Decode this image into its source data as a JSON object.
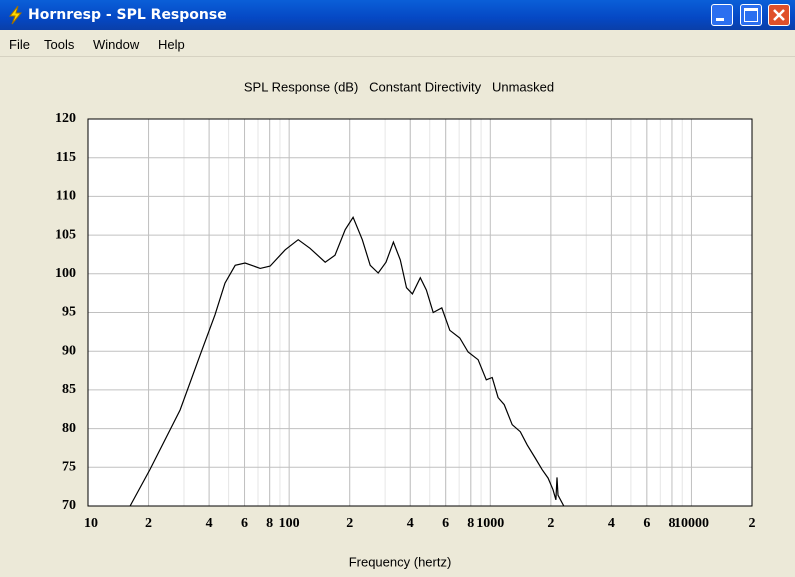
{
  "window": {
    "title": "Hornresp - SPL Response"
  },
  "menu": [
    "File",
    "Tools",
    "Window",
    "Help"
  ],
  "chart_data": {
    "type": "line",
    "title": "SPL Response (dB)   Constant Directivity   Unmasked",
    "x_label": "Frequency (hertz)",
    "x_scale": "log",
    "xlim": [
      10,
      20000
    ],
    "ylim": [
      70,
      120
    ],
    "xticks": [
      10,
      {
        "value": 20,
        "label": "2"
      },
      {
        "value": 40,
        "label": "4"
      },
      {
        "value": 60,
        "label": "6"
      },
      {
        "value": 80,
        "label": "8"
      },
      100,
      {
        "value": 200,
        "label": "2"
      },
      {
        "value": 400,
        "label": "4"
      },
      {
        "value": 600,
        "label": "6"
      },
      {
        "value": 800,
        "label": "8"
      },
      1000,
      {
        "value": 2000,
        "label": "2"
      },
      {
        "value": 4000,
        "label": "4"
      },
      {
        "value": 6000,
        "label": "6"
      },
      {
        "value": 8000,
        "label": "8"
      },
      10000,
      {
        "value": 20000,
        "label": "2"
      }
    ],
    "yticks": [
      70,
      75,
      80,
      85,
      90,
      95,
      100,
      105,
      110,
      115,
      120
    ],
    "grid": true,
    "color": "#000000",
    "x": [
      16.2,
      20.3,
      28.7,
      36.1,
      42.8,
      48.0,
      53.9,
      60.4,
      71.8,
      80.4,
      95.6,
      110.9,
      127,
      151,
      169,
      190,
      208,
      231,
      253,
      277,
      303,
      330,
      357,
      383,
      410,
      449,
      481,
      520,
      574,
      629,
      705,
      776,
      870,
      955,
      1022,
      1094,
      1172,
      1285,
      1410,
      1525,
      1671,
      1810,
      1937,
      2050,
      2118,
      2145,
      2170,
      2320
    ],
    "values": [
      70,
      74.7,
      82.4,
      89.5,
      94.7,
      98.8,
      101.1,
      101.4,
      100.7,
      101.0,
      103.1,
      104.4,
      103.3,
      101.5,
      102.4,
      105.7,
      107.3,
      104.4,
      101.1,
      100.1,
      101.5,
      104.1,
      101.8,
      98.2,
      97.4,
      99.5,
      97.9,
      95.0,
      95.6,
      92.7,
      91.7,
      89.9,
      88.9,
      86.3,
      86.6,
      84.0,
      83.1,
      80.5,
      79.6,
      77.9,
      76.2,
      74.7,
      73.6,
      72.1,
      70.8,
      73.7,
      71.4,
      70
    ]
  }
}
